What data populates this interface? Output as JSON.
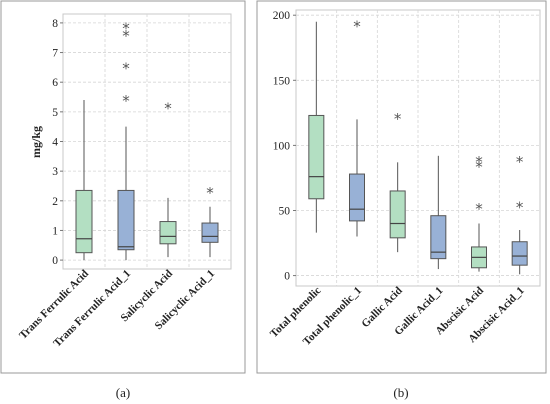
{
  "chart_data": [
    {
      "type": "boxplot",
      "panel_label": "(a)",
      "ylabel": "mg/kg",
      "ylim": [
        -0.3,
        8.3
      ],
      "yticks": [
        0,
        1,
        2,
        3,
        4,
        5,
        6,
        7,
        8
      ],
      "grid": true,
      "categories": [
        "Trans Ferrulic Acid",
        "Trans Ferrulic Acid_1",
        "Salicyclic Acid",
        "Salicyclic Acid_1"
      ],
      "colors": [
        "#b3dfc2",
        "#98b1d6",
        "#b3dfc2",
        "#98b1d6"
      ],
      "boxes": [
        {
          "min": 0.0,
          "q1": 0.25,
          "median": 0.72,
          "q3": 2.35,
          "max": 5.4,
          "outliers": []
        },
        {
          "min": 0.0,
          "q1": 0.35,
          "median": 0.45,
          "q3": 2.35,
          "max": 4.5,
          "outliers": [
            5.4,
            6.5,
            7.6,
            7.85
          ]
        },
        {
          "min": 0.1,
          "q1": 0.55,
          "median": 0.8,
          "q3": 1.3,
          "max": 2.1,
          "outliers": [
            5.15
          ]
        },
        {
          "min": 0.1,
          "q1": 0.6,
          "median": 0.8,
          "q3": 1.25,
          "max": 1.8,
          "outliers": [
            2.3
          ]
        }
      ]
    },
    {
      "type": "boxplot",
      "panel_label": "(b)",
      "ylabel": "",
      "ylim": [
        -8,
        204
      ],
      "yticks": [
        0,
        50,
        100,
        150,
        200
      ],
      "grid": true,
      "categories": [
        "Total phenolic",
        "Total phenolic_1",
        "Gallic Acid",
        "Gallic Acid_1",
        "Abscisic Acid",
        "Abscisic Acid_1"
      ],
      "colors": [
        "#b3dfc2",
        "#98b1d6",
        "#b3dfc2",
        "#98b1d6",
        "#b3dfc2",
        "#98b1d6"
      ],
      "boxes": [
        {
          "min": 33,
          "q1": 59,
          "median": 76,
          "q3": 123,
          "max": 195,
          "outliers": []
        },
        {
          "min": 30,
          "q1": 42,
          "median": 51,
          "q3": 78,
          "max": 120,
          "outliers": [
            192
          ]
        },
        {
          "min": 18,
          "q1": 29,
          "median": 40,
          "q3": 65,
          "max": 87,
          "outliers": [
            121
          ]
        },
        {
          "min": 5,
          "q1": 13,
          "median": 18,
          "q3": 46,
          "max": 92,
          "outliers": []
        },
        {
          "min": 3,
          "q1": 6,
          "median": 14,
          "q3": 22,
          "max": 40,
          "outliers": [
            52,
            84,
            88
          ]
        },
        {
          "min": 1,
          "q1": 8,
          "median": 15,
          "q3": 26,
          "max": 35,
          "outliers": [
            53,
            88
          ]
        }
      ]
    }
  ]
}
